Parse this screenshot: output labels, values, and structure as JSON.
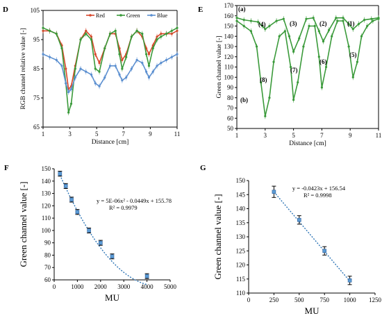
{
  "chart_data": [
    {
      "panel": "D",
      "type": "line",
      "xlabel": "Distance [cm]",
      "ylabel": "RGB channel relative value [-]",
      "xlim": [
        1,
        11
      ],
      "ylim": [
        65,
        105
      ],
      "xticks": [
        1,
        3,
        5,
        7,
        9,
        11
      ],
      "yticks": [
        65,
        75,
        85,
        95,
        105
      ],
      "legend": "top-right",
      "series": [
        {
          "name": "Red",
          "color": "#d9472b",
          "x": [
            1.0,
            1.5,
            2.0,
            2.4,
            2.7,
            2.9,
            3.1,
            3.4,
            3.8,
            4.2,
            4.6,
            4.9,
            5.2,
            5.6,
            6.0,
            6.4,
            6.7,
            6.9,
            7.2,
            7.6,
            8.0,
            8.4,
            8.7,
            8.9,
            9.2,
            9.5,
            9.8,
            10.2,
            10.6,
            11.0
          ],
          "y": [
            98,
            98,
            97,
            93,
            85,
            78,
            79,
            86,
            95,
            98,
            96,
            90,
            87,
            92,
            97,
            97,
            92,
            88,
            90,
            96,
            98,
            96,
            92,
            90,
            93,
            96,
            97,
            97,
            97,
            98
          ]
        },
        {
          "name": "Green",
          "color": "#3a9a3a",
          "x": [
            1.0,
            1.5,
            2.0,
            2.4,
            2.7,
            2.9,
            3.1,
            3.4,
            3.8,
            4.2,
            4.6,
            4.9,
            5.2,
            5.6,
            6.0,
            6.4,
            6.7,
            6.9,
            7.2,
            7.6,
            8.0,
            8.4,
            8.7,
            8.9,
            9.2,
            9.5,
            9.8,
            10.2,
            10.6,
            11.0
          ],
          "y": [
            99,
            98,
            97,
            92,
            80,
            70,
            73,
            85,
            95,
            97,
            95,
            85,
            84,
            92,
            97,
            98,
            90,
            85,
            89,
            96,
            98,
            97,
            90,
            86,
            92,
            95,
            96,
            97,
            98,
            99
          ]
        },
        {
          "name": "Blue",
          "color": "#5b8fd0",
          "x": [
            1.0,
            1.5,
            2.0,
            2.4,
            2.7,
            2.9,
            3.1,
            3.4,
            3.8,
            4.2,
            4.6,
            4.9,
            5.2,
            5.6,
            6.0,
            6.4,
            6.7,
            6.9,
            7.2,
            7.6,
            8.0,
            8.4,
            8.7,
            8.9,
            9.2,
            9.5,
            9.8,
            10.2,
            10.6,
            11.0
          ],
          "y": [
            90,
            89,
            88,
            86,
            80,
            77,
            78,
            82,
            85,
            84,
            83,
            80,
            79,
            82,
            86,
            86,
            83,
            81,
            82,
            85,
            88,
            87,
            84,
            82,
            84,
            86,
            87,
            88,
            89,
            90
          ]
        }
      ]
    },
    {
      "panel": "E",
      "type": "line",
      "xlabel": "Distance [cm]",
      "ylabel": "Green channel value [-]",
      "xlim": [
        1,
        11
      ],
      "ylim": [
        50,
        170
      ],
      "xticks": [
        1,
        3,
        5,
        7,
        9,
        11
      ],
      "yticks": [
        50,
        60,
        70,
        80,
        90,
        100,
        110,
        120,
        130,
        140,
        150,
        160,
        170
      ],
      "annotations": [
        "(a)",
        "(b)",
        "(1)",
        "(2)",
        "(3)",
        "(4)",
        "(5)",
        "(6)",
        "(7)",
        "(8)"
      ],
      "series": [
        {
          "name": "",
          "color": "#3a9a3a",
          "x": [
            1.0,
            1.5,
            2.0,
            2.5,
            2.8,
            3.0,
            3.3,
            3.8,
            4.3,
            4.7,
            5.0,
            5.4,
            5.9,
            6.4,
            6.8,
            7.1,
            7.5,
            8.0,
            8.5,
            8.9,
            9.2,
            9.6,
            10.0,
            10.5,
            11.0
          ],
          "y": [
            158,
            156,
            155,
            154,
            150,
            147,
            150,
            155,
            157,
            140,
            125,
            138,
            157,
            158,
            145,
            135,
            146,
            158,
            158,
            152,
            147,
            152,
            156,
            157,
            158
          ]
        },
        {
          "name": "",
          "color": "#3a9a3a",
          "x": [
            1.0,
            1.5,
            2.0,
            2.4,
            2.7,
            3.0,
            3.3,
            3.6,
            4.0,
            4.4,
            4.8,
            5.0,
            5.3,
            5.7,
            6.1,
            6.5,
            6.8,
            7.0,
            7.3,
            7.7,
            8.1,
            8.5,
            8.9,
            9.2,
            9.5,
            9.8,
            10.2,
            10.6,
            11.0
          ],
          "y": [
            155,
            150,
            145,
            130,
            95,
            62,
            80,
            115,
            140,
            145,
            110,
            78,
            95,
            130,
            150,
            150,
            120,
            90,
            110,
            140,
            155,
            155,
            130,
            100,
            115,
            140,
            150,
            155,
            157
          ]
        }
      ]
    },
    {
      "panel": "F",
      "type": "scatter",
      "xlabel": "MU",
      "ylabel": "Green channel value [-]",
      "xlim": [
        0,
        5000
      ],
      "ylim": [
        60,
        150
      ],
      "xticks": [
        0,
        1000,
        2000,
        3000,
        4000,
        5000
      ],
      "yticks": [
        60,
        70,
        80,
        90,
        100,
        110,
        120,
        130,
        140,
        150
      ],
      "x": [
        250,
        500,
        750,
        1000,
        1500,
        2000,
        2500,
        4000
      ],
      "y": [
        146,
        136,
        125,
        115,
        100,
        90,
        79,
        63
      ],
      "error": [
        2,
        2,
        2,
        2,
        2,
        2,
        2,
        2
      ],
      "trendline": {
        "type": "polynomial",
        "coefficients": [
          5e-06,
          -0.0449,
          155.78
        ]
      },
      "equation": "y = 5E-06x² - 0.0449x + 155.78",
      "r2": "R² = 0.9979"
    },
    {
      "panel": "G",
      "type": "scatter",
      "xlabel": "MU",
      "ylabel": "Green channel value [-]",
      "xlim": [
        0,
        1250
      ],
      "ylim": [
        110,
        150
      ],
      "xticks": [
        0,
        250,
        500,
        750,
        1000,
        1250
      ],
      "yticks": [
        110,
        115,
        120,
        125,
        130,
        135,
        140,
        145,
        150
      ],
      "x": [
        250,
        500,
        750,
        1000
      ],
      "y": [
        146,
        136,
        125,
        114.5
      ],
      "error": [
        2,
        1.5,
        1.5,
        1.5
      ],
      "trendline": {
        "type": "linear",
        "slope": -0.0423,
        "intercept": 156.54
      },
      "equation": "y = -0.0423x + 156.54",
      "r2": "R² = 0.9998"
    }
  ]
}
